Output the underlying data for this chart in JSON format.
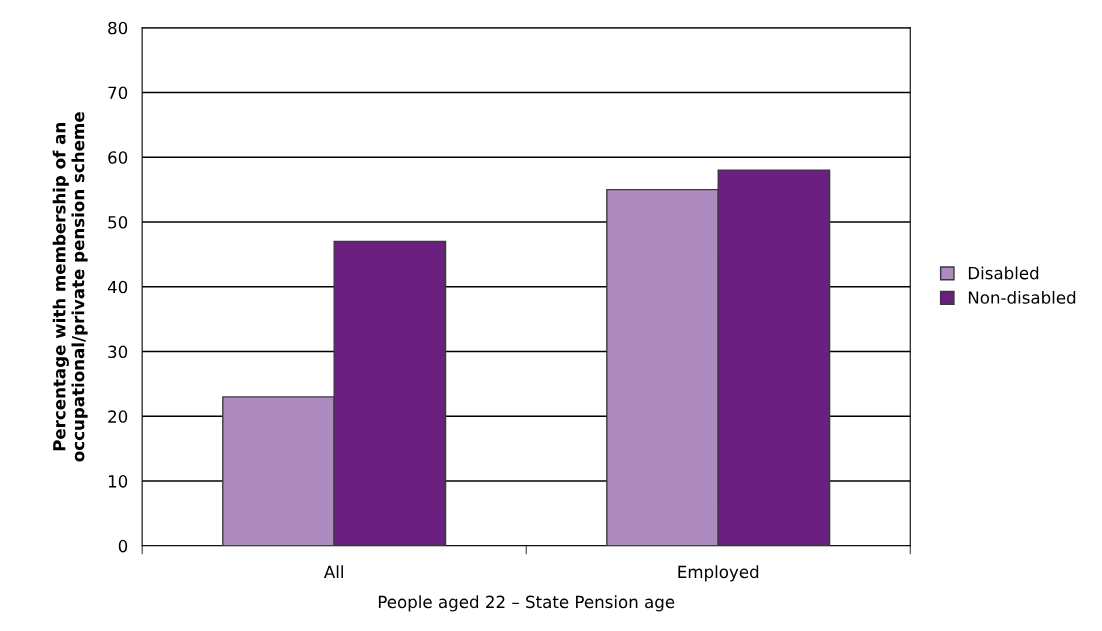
{
  "chart_data": {
    "type": "bar",
    "xlabel": "People aged 22 – State Pension age",
    "ylabel": "Percentage with membership of an\noccupational/private pension scheme",
    "categories": [
      "All",
      "Employed"
    ],
    "series": [
      {
        "name": "Disabled",
        "color": "#ad8bbf",
        "values": [
          23,
          55
        ]
      },
      {
        "name": "Non-disabled",
        "color": "#6a1f81",
        "values": [
          47,
          58
        ]
      }
    ],
    "ylim": [
      0,
      80
    ],
    "yticks": [
      0,
      10,
      20,
      30,
      40,
      50,
      60,
      70,
      80
    ],
    "grid": "y",
    "legend": "right"
  }
}
